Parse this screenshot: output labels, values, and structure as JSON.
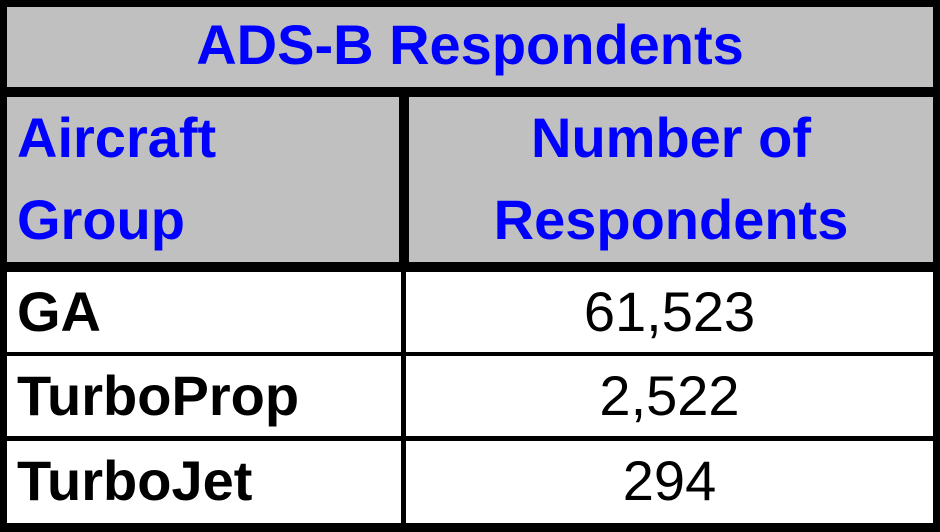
{
  "table": {
    "title": "ADS-B Respondents",
    "headers": [
      "Aircraft Group",
      "Number of Respondents"
    ],
    "header_lines": [
      [
        "Aircraft",
        "Group"
      ],
      [
        "Number of",
        "Respondents"
      ]
    ],
    "rows": [
      {
        "group": "GA",
        "count": "61,523"
      },
      {
        "group": "TurboProp",
        "count": "2,522"
      },
      {
        "group": "TurboJet",
        "count": "294"
      }
    ],
    "colors": {
      "header_bg": "#c0c0c0",
      "header_text": "#0000ff",
      "border": "#000000"
    }
  }
}
